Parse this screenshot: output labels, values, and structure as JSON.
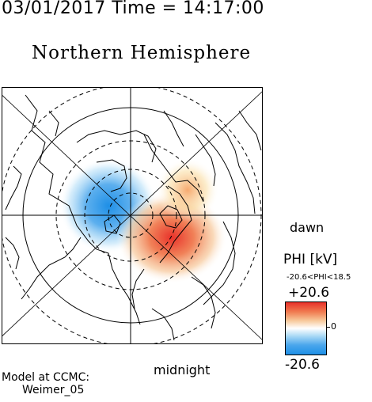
{
  "header": {
    "timestamp": "03/01/2017 Time = 14:17:00"
  },
  "map": {
    "title": "Northern Hemisphere",
    "dawn_label": "dawn",
    "midnight_label": "midnight",
    "projection": "polar-stereographic",
    "field_blobs": [
      {
        "sign": "negative",
        "color": "#1e8fe6"
      },
      {
        "sign": "positive",
        "color": "#e8312a"
      }
    ]
  },
  "colorbar": {
    "quantity_label": "PHI [kV]",
    "range_text": "-20.6<PHI<18.5",
    "max_label": "+20.6",
    "min_label": "-20.6",
    "zero_label": "0",
    "max": 20.6,
    "min": -20.6,
    "colors": {
      "high": "#e8312a",
      "mid": "#ffffff",
      "low": "#1e8fe6"
    }
  },
  "credit": {
    "line1": "Model at CCMC:",
    "line2": "Weimer_05"
  }
}
